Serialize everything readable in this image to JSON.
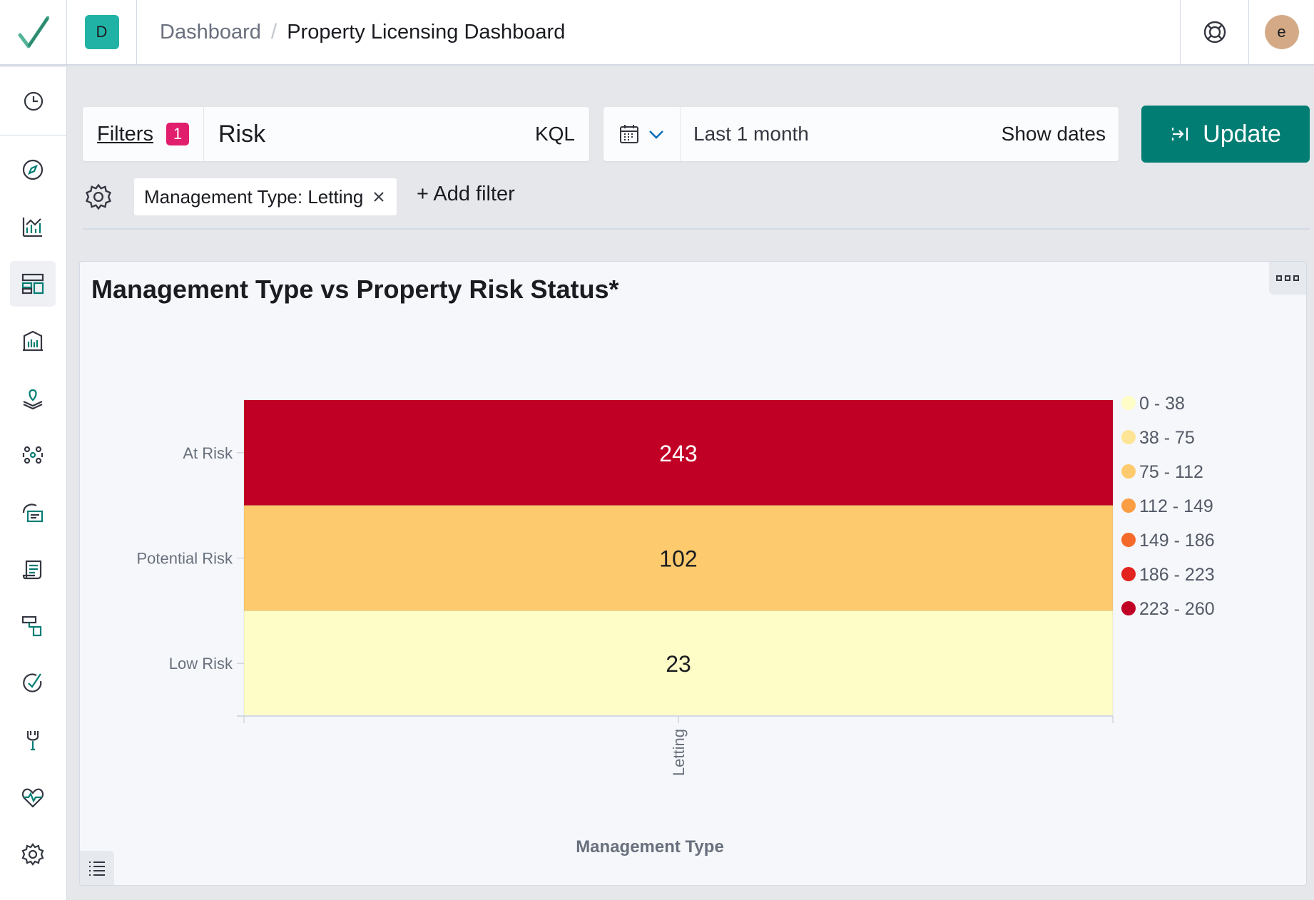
{
  "header": {
    "space_initial": "D",
    "breadcrumb_parent": "Dashboard",
    "breadcrumb_separator": "/",
    "breadcrumb_current": "Property Licensing Dashboard",
    "user_initial": "e"
  },
  "query": {
    "filters_label": "Filters",
    "filters_count": "1",
    "value": "Risk",
    "language": "KQL"
  },
  "date": {
    "range_label": "Last 1 month",
    "show_dates_label": "Show dates"
  },
  "update_label": "Update",
  "filter_pill": "Management Type: Letting",
  "add_filter_label": "+ Add filter",
  "sidenav": {
    "icons": [
      "clock-icon",
      "compass-icon",
      "visualize-icon",
      "dashboard-icon",
      "canvas-icon",
      "maps-icon",
      "ml-icon",
      "logs-icon",
      "apm-icon",
      "uptime-icon",
      "siem-icon",
      "dev-tools-icon",
      "monitoring-icon",
      "management-icon"
    ],
    "active": "dashboard-icon"
  },
  "colors": {
    "accent": "#017d73",
    "badge_pink": "#e11f6c",
    "at_risk": "#c10026",
    "potential_risk": "#fdca6d",
    "low_risk": "#fefcc7"
  },
  "panel": {
    "title": "Management Type vs Property Risk Status*"
  },
  "chart_data": {
    "type": "heatmap",
    "title": "Management Type vs Property Risk Status*",
    "xlabel": "Management Type",
    "ylabel": "",
    "x_categories": [
      "Letting"
    ],
    "y_categories": [
      "At Risk",
      "Potential Risk",
      "Low Risk"
    ],
    "values": [
      [
        243
      ],
      [
        102
      ],
      [
        23
      ]
    ],
    "cell_colors": [
      "#c10026",
      "#fdca6d",
      "#fefcc7"
    ],
    "label_colors": [
      "#ffffff",
      "#1a1c21",
      "#1a1c21"
    ],
    "legend_position": "right",
    "legend": [
      {
        "label": "0 - 38",
        "color": "#fefcc7"
      },
      {
        "label": "38 - 75",
        "color": "#fee595"
      },
      {
        "label": "75 - 112",
        "color": "#fdca6d"
      },
      {
        "label": "112 - 149",
        "color": "#fb9d42"
      },
      {
        "label": "149 - 186",
        "color": "#f46a2b"
      },
      {
        "label": "186 - 223",
        "color": "#e2231e"
      },
      {
        "label": "223 - 260",
        "color": "#c10026"
      }
    ]
  }
}
